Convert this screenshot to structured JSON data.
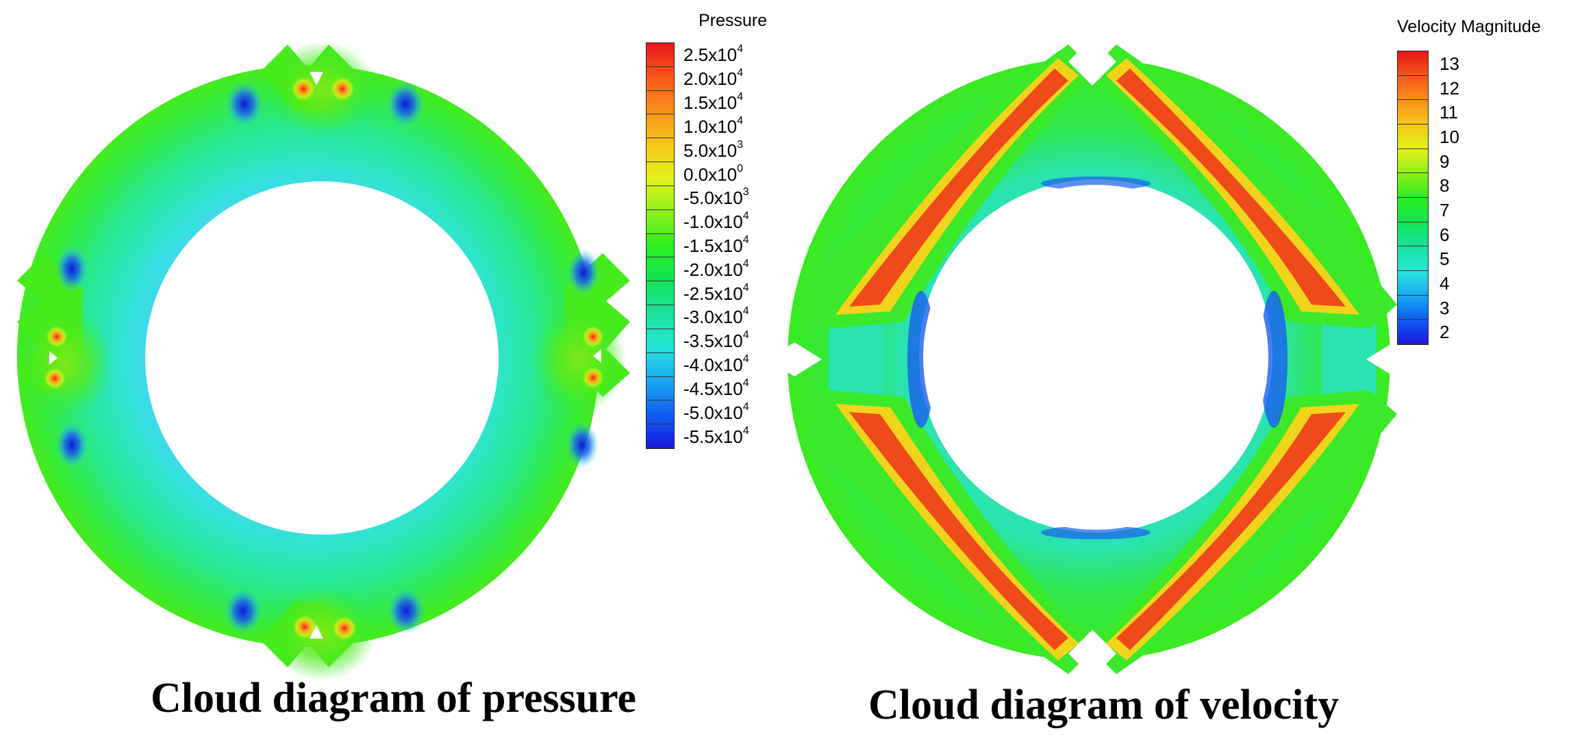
{
  "panels": {
    "pressure": {
      "title": "Cloud diagram of pressure",
      "legend_title": "Pressure",
      "legend_levels": [
        {
          "mantissa": "2.5x10",
          "exp": "4"
        },
        {
          "mantissa": "2.0x10",
          "exp": "4"
        },
        {
          "mantissa": "1.5x10",
          "exp": "4"
        },
        {
          "mantissa": "1.0x10",
          "exp": "4"
        },
        {
          "mantissa": "5.0x10",
          "exp": "3"
        },
        {
          "mantissa": "0.0x10",
          "exp": "0"
        },
        {
          "mantissa": "-5.0x10",
          "exp": "3"
        },
        {
          "mantissa": "-1.0x10",
          "exp": "4"
        },
        {
          "mantissa": "-1.5x10",
          "exp": "4"
        },
        {
          "mantissa": "-2.0x10",
          "exp": "4"
        },
        {
          "mantissa": "-2.5x10",
          "exp": "4"
        },
        {
          "mantissa": "-3.0x10",
          "exp": "4"
        },
        {
          "mantissa": "-3.5x10",
          "exp": "4"
        },
        {
          "mantissa": "-4.0x10",
          "exp": "4"
        },
        {
          "mantissa": "-4.5x10",
          "exp": "4"
        },
        {
          "mantissa": "-5.0x10",
          "exp": "4"
        },
        {
          "mantissa": "-5.5x10",
          "exp": "4"
        }
      ]
    },
    "velocity": {
      "title": "Cloud diagram of velocity",
      "legend_title": "Velocity Magnitude",
      "legend_levels": [
        "13",
        "12",
        "11",
        "10",
        "9",
        "8",
        "7",
        "6",
        "5",
        "4",
        "3",
        "2"
      ]
    }
  },
  "colormap": [
    "#e8161b",
    "#f5581a",
    "#f9901a",
    "#f5c71a",
    "#e4f01c",
    "#8ff01c",
    "#2cee1f",
    "#12e454",
    "#1be29e",
    "#26e5da",
    "#1aa8f2",
    "#0f5ef2",
    "#1a18e0"
  ],
  "colors": {
    "base_green": "#3ce82a",
    "ring_cyan": "#2ee3cf",
    "hotspot_red": "#f21f1a",
    "low_blue": "#1420dc"
  }
}
